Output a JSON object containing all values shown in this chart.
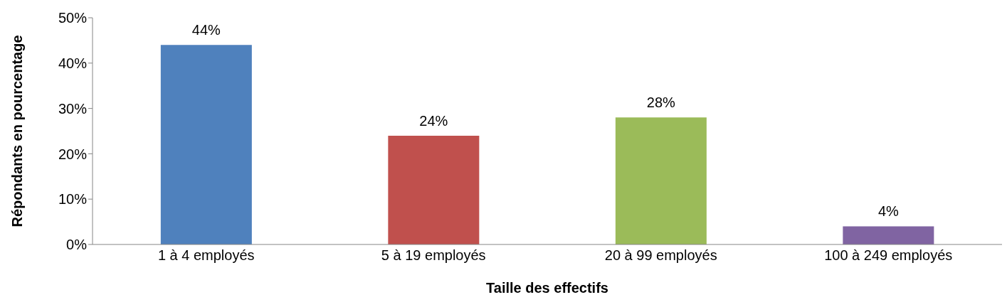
{
  "chart_data": {
    "type": "bar",
    "xlabel": "Taille des effectifs",
    "ylabel": "Répondants en pourcentage",
    "categories": [
      "1 à 4 employés",
      "5 à 19 employés",
      "20 à 99 employés",
      "100 à 249 employés"
    ],
    "values": [
      44,
      24,
      28,
      4
    ],
    "colors": [
      "#4f81bd",
      "#c0504d",
      "#9bbb59",
      "#8064a2"
    ],
    "value_labels": [
      "44%",
      "24%",
      "28%",
      "4%"
    ],
    "ylim": [
      0,
      50
    ],
    "yticks": [
      {
        "value": 0,
        "label": "0%"
      },
      {
        "value": 10,
        "label": "10%"
      },
      {
        "value": 20,
        "label": "20%"
      },
      {
        "value": 30,
        "label": "30%"
      },
      {
        "value": 40,
        "label": "40%"
      },
      {
        "value": 50,
        "label": "50%"
      }
    ],
    "grid": false,
    "legend": false
  }
}
